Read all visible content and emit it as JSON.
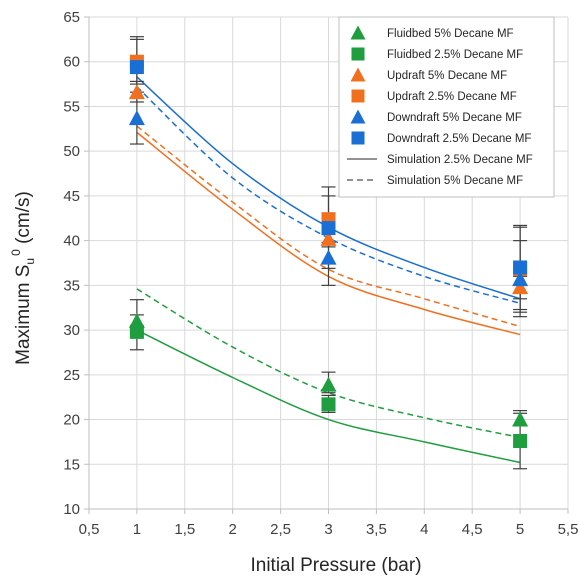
{
  "chart_data": {
    "type": "scatter",
    "xlabel": "Initial Pressure (bar)",
    "ylabel": {
      "main": "Maximum  S",
      "sub": "u",
      "sup": "0",
      "unit": " (cm/s)"
    },
    "xlim": [
      0.5,
      5.5
    ],
    "ylim": [
      10,
      65
    ],
    "xticks": [
      0.5,
      1,
      1.5,
      2,
      2.5,
      3,
      3.5,
      4,
      4.5,
      5,
      5.5
    ],
    "xtick_labels": [
      "0,5",
      "1",
      "1,5",
      "2",
      "2,5",
      "3",
      "3,5",
      "4",
      "4,5",
      "5",
      "5,5"
    ],
    "yticks": [
      10,
      15,
      20,
      25,
      30,
      35,
      40,
      45,
      50,
      55,
      60,
      65
    ],
    "ytick_labels": [
      "10",
      "15",
      "20",
      "25",
      "30",
      "35",
      "40",
      "45",
      "50",
      "55",
      "60",
      "65"
    ],
    "grid": true,
    "legend_position": "top-right",
    "colors": {
      "green": "#1e9e3e",
      "orange": "#f07020",
      "blue": "#1a6fd4",
      "black": "#262626"
    },
    "series": [
      {
        "name": "Fluidbed 5% Decane MF",
        "marker": "triangle",
        "color": "green",
        "points": [
          {
            "x": 1,
            "y": 31.0,
            "err": [
              29.8,
              33.4
            ]
          },
          {
            "x": 3,
            "y": 23.9,
            "err": [
              23.0,
              25.3
            ]
          },
          {
            "x": 5,
            "y": 20.0,
            "err": [
              19.3,
              21.0
            ]
          }
        ]
      },
      {
        "name": "Fluidbed 2.5% Decane MF",
        "marker": "square",
        "color": "green",
        "points": [
          {
            "x": 1,
            "y": 29.8,
            "err": [
              27.8,
              31.7
            ]
          },
          {
            "x": 3,
            "y": 21.7,
            "err": [
              20.8,
              22.7
            ]
          },
          {
            "x": 5,
            "y": 17.6,
            "err": [
              14.5,
              20.7
            ]
          }
        ]
      },
      {
        "name": "Updraft 5% Decane MF",
        "marker": "triangle",
        "color": "orange",
        "points": [
          {
            "x": 1,
            "y": 56.6,
            "err": [
              55.5,
              57.8
            ]
          },
          {
            "x": 3,
            "y": 40.2,
            "err": [
              39.3,
              41.2
            ]
          },
          {
            "x": 5,
            "y": 34.8,
            "err": [
              33.5,
              36.0
            ]
          }
        ]
      },
      {
        "name": "Updraft 2.5% Decane MF",
        "marker": "square",
        "color": "orange",
        "points": [
          {
            "x": 1,
            "y": 60.0,
            "err": [
              57.5,
              62.5
            ]
          },
          {
            "x": 3,
            "y": 42.4,
            "err": [
              39.8,
              45.0
            ]
          },
          {
            "x": 5,
            "y": 36.8,
            "err": [
              32.0,
              41.5
            ]
          }
        ]
      },
      {
        "name": "Downdraft 5% Decane MF",
        "marker": "triangle",
        "color": "blue",
        "points": [
          {
            "x": 1,
            "y": 53.7,
            "err": [
              50.8,
              56.6
            ]
          },
          {
            "x": 3,
            "y": 38.1,
            "err": [
              35.0,
              41.2
            ]
          },
          {
            "x": 5,
            "y": 35.7,
            "err": [
              31.5,
              40.0
            ]
          }
        ]
      },
      {
        "name": "Downdraft 2.5% Decane MF",
        "marker": "square",
        "color": "blue",
        "points": [
          {
            "x": 1,
            "y": 59.4,
            "err": [
              56.0,
              62.8
            ]
          },
          {
            "x": 3,
            "y": 41.4,
            "err": [
              36.9,
              46.0
            ]
          },
          {
            "x": 5,
            "y": 37.0,
            "err": [
              32.3,
              41.7
            ]
          }
        ]
      }
    ],
    "simulations": [
      {
        "color": "green",
        "dash": false,
        "x": [
          1,
          2,
          3,
          4,
          5
        ],
        "y": [
          30.0,
          24.7,
          20.0,
          17.5,
          15.2
        ]
      },
      {
        "color": "green",
        "dash": true,
        "x": [
          1,
          2,
          3,
          4,
          5
        ],
        "y": [
          34.6,
          28.1,
          23.0,
          20.2,
          18.0
        ]
      },
      {
        "color": "orange",
        "dash": false,
        "x": [
          1,
          2,
          3,
          4,
          5
        ],
        "y": [
          52.1,
          43.5,
          36.0,
          32.3,
          29.5
        ]
      },
      {
        "color": "orange",
        "dash": true,
        "x": [
          1,
          2,
          3,
          4,
          5
        ],
        "y": [
          52.8,
          44.3,
          36.8,
          33.5,
          30.4
        ]
      },
      {
        "color": "blue",
        "dash": false,
        "x": [
          1,
          2,
          3,
          4,
          5
        ],
        "y": [
          58.3,
          48.6,
          41.5,
          37.0,
          33.5
        ]
      },
      {
        "color": "blue",
        "dash": true,
        "x": [
          1,
          2,
          3,
          4,
          5
        ],
        "y": [
          57.2,
          47.0,
          40.3,
          36.0,
          33.0
        ]
      }
    ],
    "legend_lines": [
      {
        "name": "Simulation 2.5% Decane MF",
        "dash": false
      },
      {
        "name": "Simulation 5% Decane MF",
        "dash": true
      }
    ]
  }
}
